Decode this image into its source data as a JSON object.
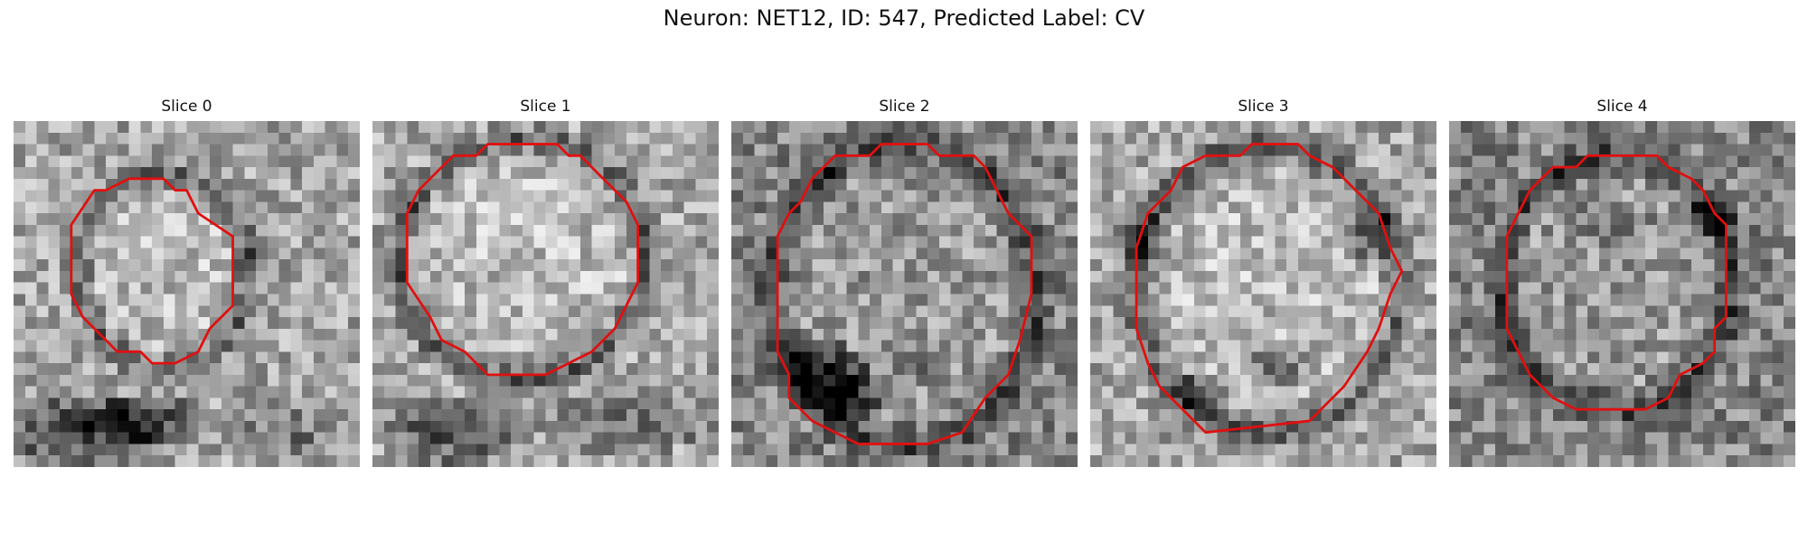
{
  "figure": {
    "title": "Neuron: NET12, ID: 547, Predicted Label: CV",
    "contour_color": "#e01010",
    "colormap": "gray"
  },
  "panels": [
    {
      "title": "Slice 0"
    },
    {
      "title": "Slice 1"
    },
    {
      "title": "Slice 2"
    },
    {
      "title": "Slice 3"
    },
    {
      "title": "Slice 4"
    }
  ]
}
